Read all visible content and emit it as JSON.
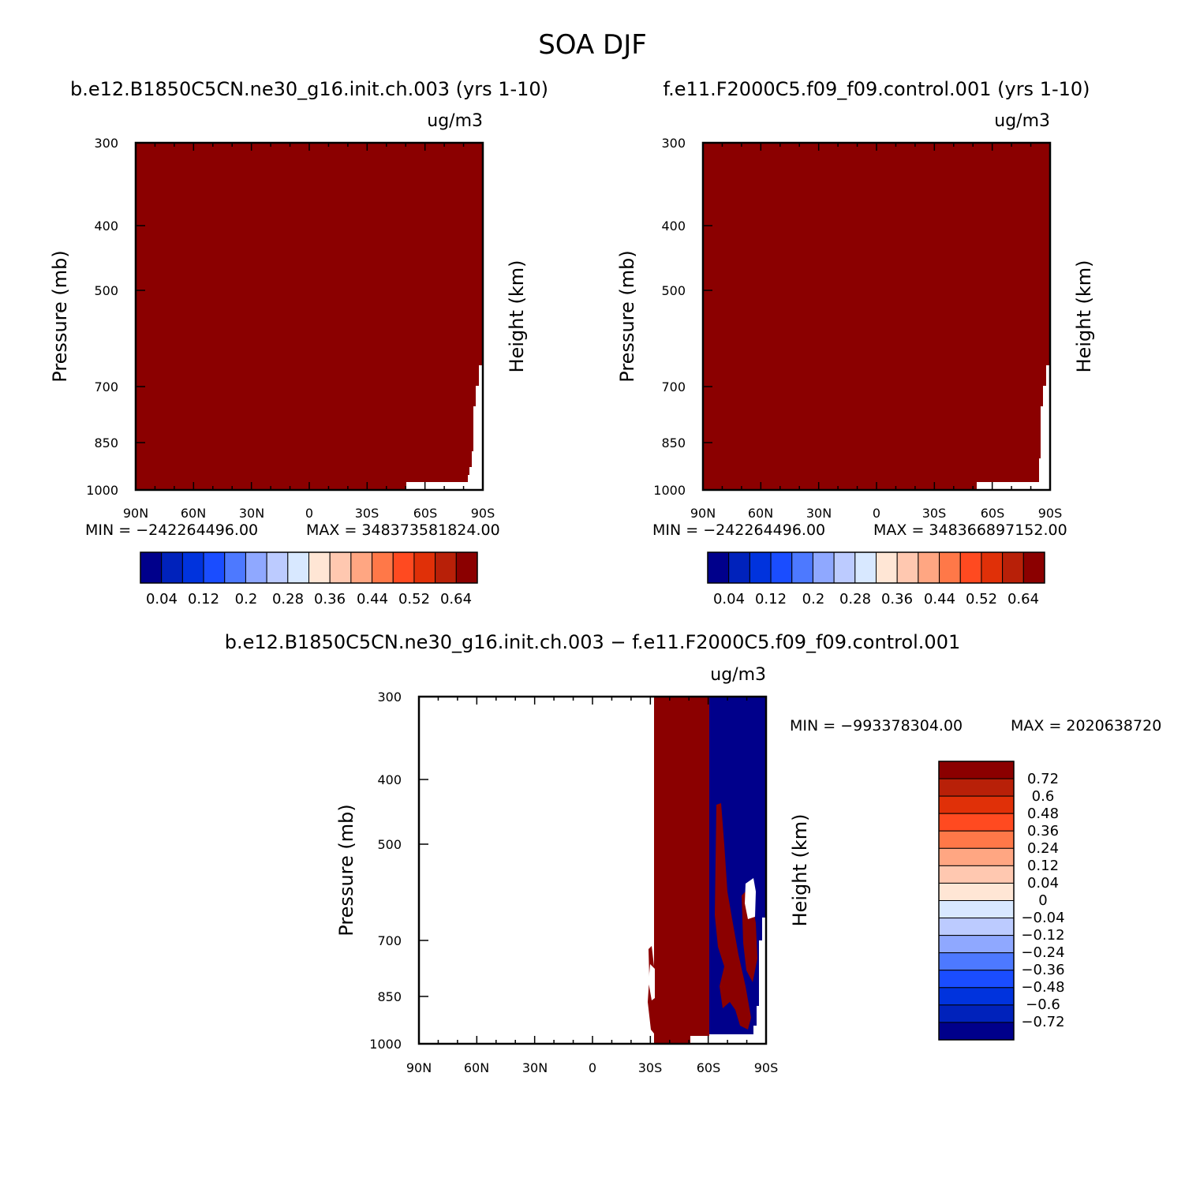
{
  "title": "SOA DJF",
  "colors": {
    "dark_red": "#8b0000",
    "dark_blue": "#00008b",
    "palette12": [
      "#00008b",
      "#0022bb",
      "#0033dd",
      "#1a4dff",
      "#4d79ff",
      "#8fa8ff",
      "#bccbff",
      "#d8e8ff",
      "#ffe6d5",
      "#ffc8b0",
      "#ffa682",
      "#ff7848",
      "#ff4a20",
      "#e03008",
      "#b82008",
      "#8b0000"
    ],
    "palette3": [
      "#8b0000",
      "#b82008",
      "#e03008",
      "#ff4a20",
      "#ff7848",
      "#ffa682",
      "#ffc8b0",
      "#ffe6d5",
      "#d8e8ff",
      "#bccbff",
      "#8fa8ff",
      "#4d79ff",
      "#1a4dff",
      "#0033dd",
      "#0022bb",
      "#00008b"
    ]
  },
  "chart_data": [
    {
      "type": "heatmap",
      "title": "b.e12.B1850C5CN.ne30_g16.init.ch.003 (yrs 1-10)",
      "units": "ug/m3",
      "xlabel": "",
      "ylabel": "Pressure (mb)",
      "ylabel_right": "Height (km)",
      "x_ticks": [
        "90N",
        "60N",
        "30N",
        "0",
        "30S",
        "60S",
        "90S"
      ],
      "y_ticks": [
        "300",
        "400",
        "500",
        "700",
        "850",
        "1000"
      ],
      "y_values": [
        300,
        400,
        500,
        700,
        850,
        1000
      ],
      "ylim": [
        1000,
        300
      ],
      "stats_min": "MIN = −242264496.00",
      "stats_max": "MAX = 348373581824.00",
      "colorbar_labels": [
        "0.04",
        "0.12",
        "0.2",
        "0.28",
        "0.36",
        "0.44",
        "0.52",
        "0.64"
      ],
      "dominant_value": "> 0.64"
    },
    {
      "type": "heatmap",
      "title": "f.e11.F2000C5.f09_f09.control.001 (yrs 1-10)",
      "units": "ug/m3",
      "xlabel": "",
      "ylabel": "Pressure (mb)",
      "ylabel_right": "Height (km)",
      "x_ticks": [
        "90N",
        "60N",
        "30N",
        "0",
        "30S",
        "60S",
        "90S"
      ],
      "y_ticks": [
        "300",
        "400",
        "500",
        "700",
        "850",
        "1000"
      ],
      "y_values": [
        300,
        400,
        500,
        700,
        850,
        1000
      ],
      "ylim": [
        1000,
        300
      ],
      "stats_min": "MIN = −242264496.00",
      "stats_max": "MAX = 348366897152.00",
      "colorbar_labels": [
        "0.04",
        "0.12",
        "0.2",
        "0.28",
        "0.36",
        "0.44",
        "0.52",
        "0.64"
      ],
      "dominant_value": "> 0.64"
    },
    {
      "type": "heatmap",
      "title": "b.e12.B1850C5CN.ne30_g16.init.ch.003 − f.e11.F2000C5.f09_f09.control.001",
      "units": "ug/m3",
      "xlabel": "",
      "ylabel": "Pressure (mb)",
      "ylabel_right": "Height (km)",
      "x_ticks": [
        "90N",
        "60N",
        "30N",
        "0",
        "30S",
        "60S",
        "90S"
      ],
      "y_ticks": [
        "300",
        "400",
        "500",
        "700",
        "850",
        "1000"
      ],
      "y_values": [
        300,
        400,
        500,
        700,
        850,
        1000
      ],
      "ylim": [
        1000,
        300
      ],
      "stats_min": "MIN = −993378304.00",
      "stats_max": "MAX = 2020638720",
      "colorbar_labels": [
        "0.72",
        "0.6",
        "0.48",
        "0.36",
        "0.24",
        "0.12",
        "0.04",
        "0",
        "−0.04",
        "−0.12",
        "−0.24",
        "−0.36",
        "−0.48",
        "−0.6",
        "−0.72"
      ],
      "regions": [
        {
          "from_lat": "90N",
          "to_lat": "30S",
          "value": "white"
        },
        {
          "from_lat": "30S",
          "to_lat": "60S",
          "value": "> 0.72"
        },
        {
          "from_lat": "60S",
          "to_lat": "90S",
          "value": "< −0.72"
        }
      ]
    }
  ]
}
